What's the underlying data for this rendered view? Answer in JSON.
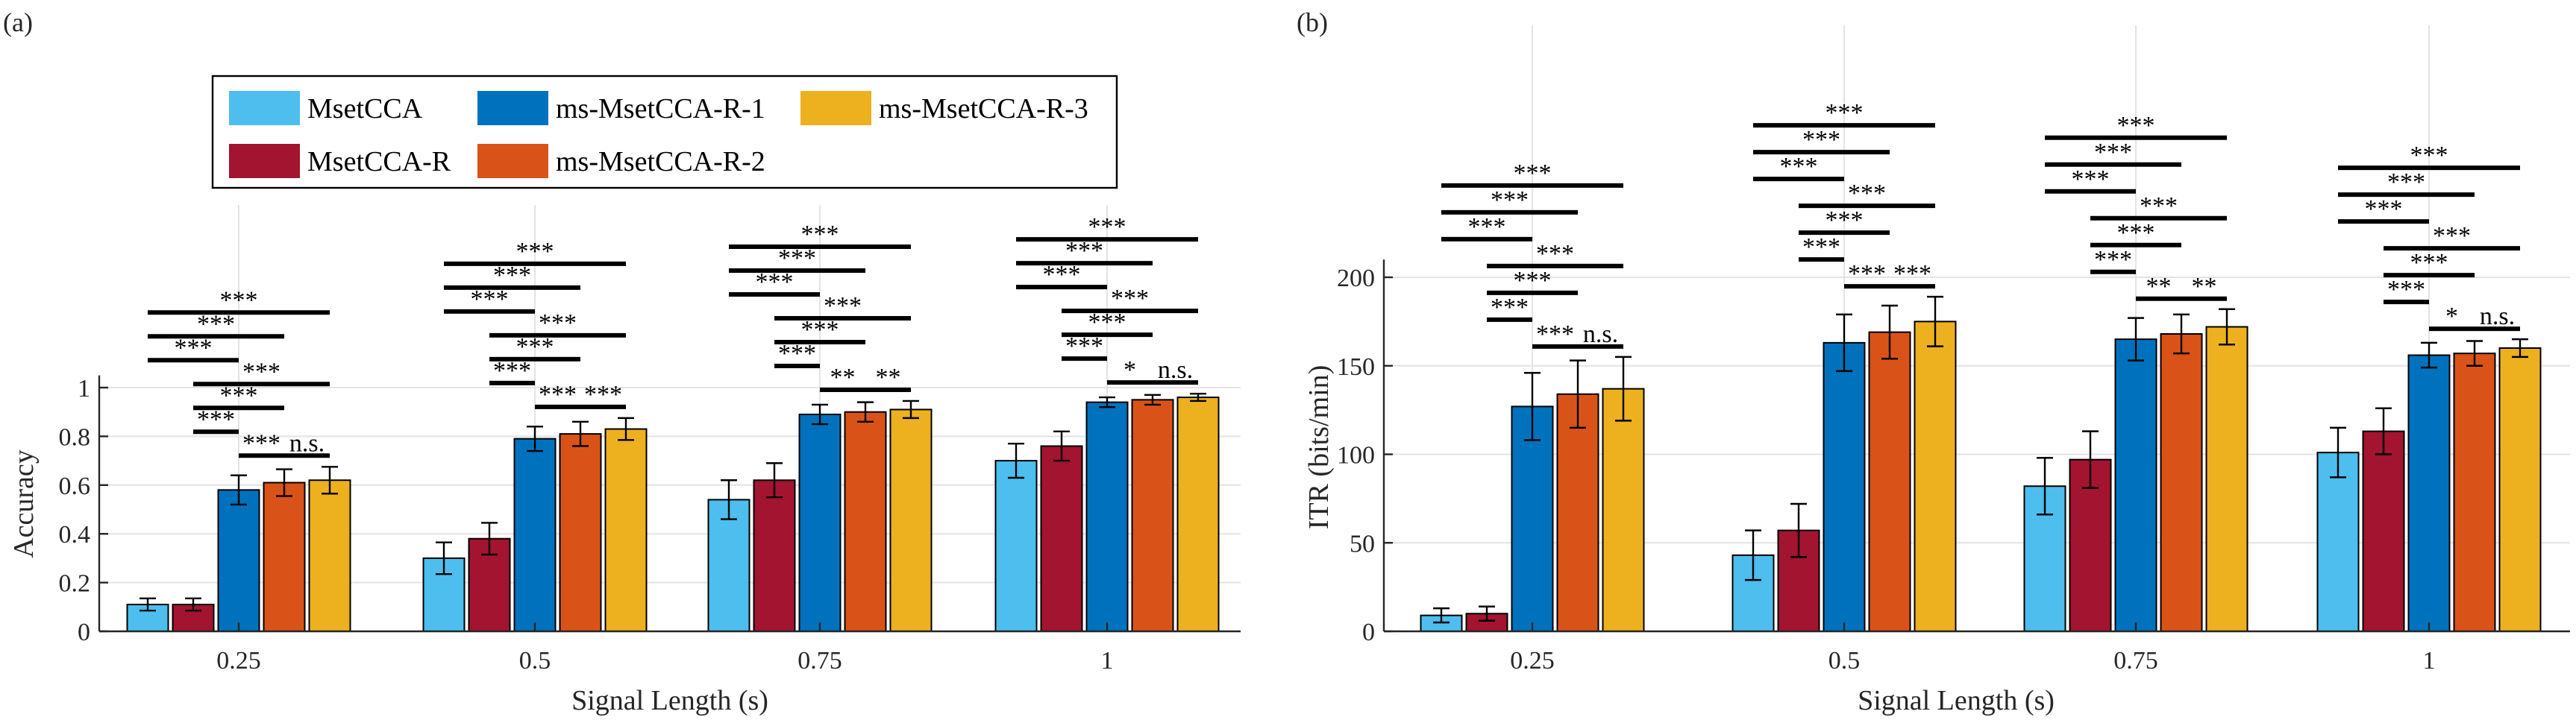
{
  "chart_data": [
    {
      "type": "bar",
      "panel_label": "(a)",
      "title": "",
      "xlabel": "Signal Length (s)",
      "ylabel": "Accuracy",
      "categories": [
        "0.25",
        "0.5",
        "0.75",
        "1"
      ],
      "ylim": [
        0,
        1.05
      ],
      "yticks": [
        "0",
        "0.2",
        "0.4",
        "0.6",
        "0.8",
        "1"
      ],
      "grid": true,
      "series": [
        {
          "name": "MsetCCA",
          "color": "#4DBEEE",
          "values": [
            0.11,
            0.3,
            0.54,
            0.7
          ],
          "errors": [
            0.025,
            0.065,
            0.08,
            0.07
          ]
        },
        {
          "name": "MsetCCA-R",
          "color": "#A2142F",
          "values": [
            0.11,
            0.38,
            0.62,
            0.76
          ],
          "errors": [
            0.025,
            0.065,
            0.07,
            0.06
          ]
        },
        {
          "name": "ms-MsetCCA-R-1",
          "color": "#0072BD",
          "values": [
            0.58,
            0.79,
            0.89,
            0.94
          ],
          "errors": [
            0.06,
            0.05,
            0.04,
            0.02
          ]
        },
        {
          "name": "ms-MsetCCA-R-2",
          "color": "#D95319",
          "values": [
            0.61,
            0.81,
            0.9,
            0.95
          ],
          "errors": [
            0.055,
            0.05,
            0.04,
            0.02
          ]
        },
        {
          "name": "ms-MsetCCA-R-3",
          "color": "#EDB120",
          "values": [
            0.62,
            0.83,
            0.91,
            0.96
          ],
          "errors": [
            0.055,
            0.045,
            0.035,
            0.015
          ]
        }
      ],
      "significance": [
        {
          "category": 0,
          "pairs": [
            {
              "a": 0,
              "b": 4,
              "label": "***"
            },
            {
              "a": 0,
              "b": 3,
              "label": "***"
            },
            {
              "a": 0,
              "b": 2,
              "label": "***"
            },
            {
              "a": 1,
              "b": 4,
              "label": "***"
            },
            {
              "a": 1,
              "b": 3,
              "label": "***"
            },
            {
              "a": 1,
              "b": 2,
              "label": "***"
            },
            {
              "a": 2,
              "b": 3,
              "label": "***"
            },
            {
              "a": 3,
              "b": 4,
              "label": "n.s."
            }
          ]
        },
        {
          "category": 1,
          "pairs": [
            {
              "a": 0,
              "b": 4,
              "label": "***"
            },
            {
              "a": 0,
              "b": 3,
              "label": "***"
            },
            {
              "a": 0,
              "b": 2,
              "label": "***"
            },
            {
              "a": 1,
              "b": 4,
              "label": "***"
            },
            {
              "a": 1,
              "b": 3,
              "label": "***"
            },
            {
              "a": 1,
              "b": 2,
              "label": "***"
            },
            {
              "a": 2,
              "b": 3,
              "label": "***"
            },
            {
              "a": 3,
              "b": 4,
              "label": "***"
            }
          ]
        },
        {
          "category": 2,
          "pairs": [
            {
              "a": 0,
              "b": 4,
              "label": "***"
            },
            {
              "a": 0,
              "b": 3,
              "label": "***"
            },
            {
              "a": 0,
              "b": 2,
              "label": "***"
            },
            {
              "a": 1,
              "b": 4,
              "label": "***"
            },
            {
              "a": 1,
              "b": 3,
              "label": "***"
            },
            {
              "a": 1,
              "b": 2,
              "label": "***"
            },
            {
              "a": 2,
              "b": 3,
              "label": "**"
            },
            {
              "a": 3,
              "b": 4,
              "label": "**"
            }
          ]
        },
        {
          "category": 3,
          "pairs": [
            {
              "a": 0,
              "b": 4,
              "label": "***"
            },
            {
              "a": 0,
              "b": 3,
              "label": "***"
            },
            {
              "a": 0,
              "b": 2,
              "label": "***"
            },
            {
              "a": 1,
              "b": 4,
              "label": "***"
            },
            {
              "a": 1,
              "b": 3,
              "label": "***"
            },
            {
              "a": 1,
              "b": 2,
              "label": "***"
            },
            {
              "a": 2,
              "b": 3,
              "label": "*"
            },
            {
              "a": 3,
              "b": 4,
              "label": "n.s."
            }
          ]
        }
      ]
    },
    {
      "type": "bar",
      "panel_label": "(b)",
      "title": "",
      "xlabel": "Signal Length (s)",
      "ylabel": "ITR (bits/min)",
      "categories": [
        "0.25",
        "0.5",
        "0.75",
        "1"
      ],
      "ylim": [
        0,
        210
      ],
      "yticks": [
        "0",
        "50",
        "100",
        "150",
        "200"
      ],
      "grid": true,
      "series": [
        {
          "name": "MsetCCA",
          "color": "#4DBEEE",
          "values": [
            9,
            43,
            82,
            101
          ],
          "errors": [
            4,
            14,
            16,
            14
          ]
        },
        {
          "name": "MsetCCA-R",
          "color": "#A2142F",
          "values": [
            10,
            57,
            97,
            113
          ],
          "errors": [
            4,
            15,
            16,
            13
          ]
        },
        {
          "name": "ms-MsetCCA-R-1",
          "color": "#0072BD",
          "values": [
            127,
            163,
            165,
            156
          ],
          "errors": [
            19,
            16,
            12,
            7
          ]
        },
        {
          "name": "ms-MsetCCA-R-2",
          "color": "#D95319",
          "values": [
            134,
            169,
            168,
            157
          ],
          "errors": [
            19,
            15,
            11,
            7
          ]
        },
        {
          "name": "ms-MsetCCA-R-3",
          "color": "#EDB120",
          "values": [
            137,
            175,
            172,
            160
          ],
          "errors": [
            18,
            14,
            10,
            5
          ]
        }
      ],
      "significance": [
        {
          "category": 0,
          "pairs": [
            {
              "a": 0,
              "b": 4,
              "label": "***"
            },
            {
              "a": 0,
              "b": 3,
              "label": "***"
            },
            {
              "a": 0,
              "b": 2,
              "label": "***"
            },
            {
              "a": 1,
              "b": 4,
              "label": "***"
            },
            {
              "a": 1,
              "b": 3,
              "label": "***"
            },
            {
              "a": 1,
              "b": 2,
              "label": "***"
            },
            {
              "a": 2,
              "b": 3,
              "label": "***"
            },
            {
              "a": 3,
              "b": 4,
              "label": "n.s."
            }
          ]
        },
        {
          "category": 1,
          "pairs": [
            {
              "a": 0,
              "b": 4,
              "label": "***"
            },
            {
              "a": 0,
              "b": 3,
              "label": "***"
            },
            {
              "a": 0,
              "b": 2,
              "label": "***"
            },
            {
              "a": 1,
              "b": 4,
              "label": "***"
            },
            {
              "a": 1,
              "b": 3,
              "label": "***"
            },
            {
              "a": 1,
              "b": 2,
              "label": "***"
            },
            {
              "a": 2,
              "b": 3,
              "label": "***"
            },
            {
              "a": 3,
              "b": 4,
              "label": "***"
            }
          ]
        },
        {
          "category": 2,
          "pairs": [
            {
              "a": 0,
              "b": 4,
              "label": "***"
            },
            {
              "a": 0,
              "b": 3,
              "label": "***"
            },
            {
              "a": 0,
              "b": 2,
              "label": "***"
            },
            {
              "a": 1,
              "b": 4,
              "label": "***"
            },
            {
              "a": 1,
              "b": 3,
              "label": "***"
            },
            {
              "a": 1,
              "b": 2,
              "label": "***"
            },
            {
              "a": 2,
              "b": 3,
              "label": "**"
            },
            {
              "a": 3,
              "b": 4,
              "label": "**"
            }
          ]
        },
        {
          "category": 3,
          "pairs": [
            {
              "a": 0,
              "b": 4,
              "label": "***"
            },
            {
              "a": 0,
              "b": 3,
              "label": "***"
            },
            {
              "a": 0,
              "b": 2,
              "label": "***"
            },
            {
              "a": 1,
              "b": 4,
              "label": "***"
            },
            {
              "a": 1,
              "b": 3,
              "label": "***"
            },
            {
              "a": 1,
              "b": 2,
              "label": "***"
            },
            {
              "a": 2,
              "b": 3,
              "label": "*"
            },
            {
              "a": 3,
              "b": 4,
              "label": "n.s."
            }
          ]
        }
      ]
    }
  ],
  "legend": {
    "placement": "top-left of panel (a)",
    "entries": [
      "MsetCCA",
      "ms-MsetCCA-R-1",
      "ms-MsetCCA-R-3",
      "MsetCCA-R",
      "ms-MsetCCA-R-2"
    ]
  }
}
